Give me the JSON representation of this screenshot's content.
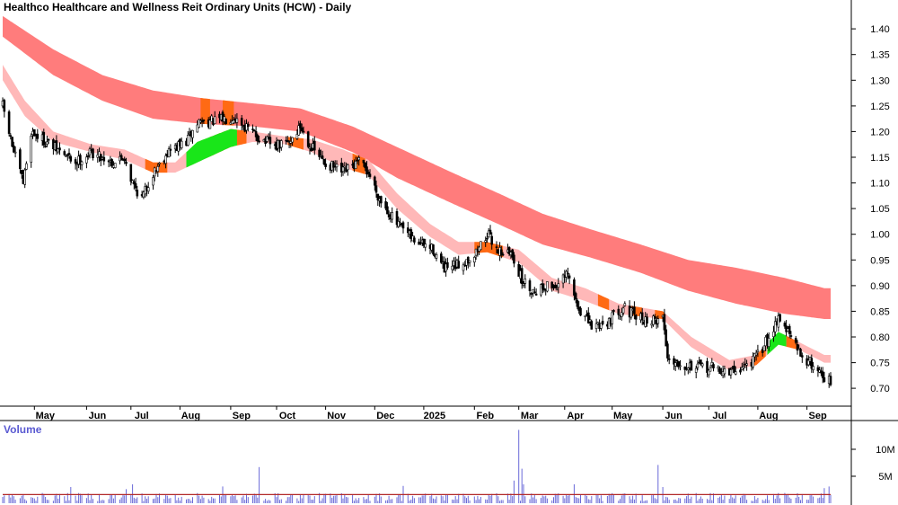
{
  "chart_data": {
    "type": "candlestick",
    "title": "Healthco Healthcare and Wellness Reit Ordinary Units (HCW) - Daily",
    "price_axis": {
      "ylim": [
        0.66,
        1.43
      ],
      "ticks": [
        "0.70",
        "0.75",
        "0.80",
        "0.85",
        "0.90",
        "0.95",
        "1.00",
        "1.05",
        "1.10",
        "1.15",
        "1.20",
        "1.25",
        "1.30",
        "1.35",
        "1.40"
      ]
    },
    "x_axis": {
      "start": "2024-04-11",
      "end": "2025-09-16",
      "labels": [
        {
          "label": "May",
          "date": "2024-05-01"
        },
        {
          "label": "Jun",
          "date": "2024-06-03"
        },
        {
          "label": "Jul",
          "date": "2024-07-01"
        },
        {
          "label": "Aug",
          "date": "2024-08-01"
        },
        {
          "label": "Sep",
          "date": "2024-09-02"
        },
        {
          "label": "Oct",
          "date": "2024-10-01"
        },
        {
          "label": "Nov",
          "date": "2024-11-01"
        },
        {
          "label": "Dec",
          "date": "2024-12-02"
        },
        {
          "label": "2025",
          "date": "2025-01-02"
        },
        {
          "label": "Feb",
          "date": "2025-02-03"
        },
        {
          "label": "Mar",
          "date": "2025-03-03"
        },
        {
          "label": "Apr",
          "date": "2025-04-01"
        },
        {
          "label": "May",
          "date": "2025-05-01"
        },
        {
          "label": "Jun",
          "date": "2025-06-02"
        },
        {
          "label": "Jul",
          "date": "2025-07-01"
        },
        {
          "label": "Aug",
          "date": "2025-08-01"
        },
        {
          "label": "Sep",
          "date": "2025-09-01"
        }
      ]
    },
    "close_path": [
      [
        "2024-04-11",
        1.25
      ],
      [
        "2024-04-18",
        1.16
      ],
      [
        "2024-04-24",
        1.1
      ],
      [
        "2024-04-29",
        1.2
      ],
      [
        "2024-05-13",
        1.17
      ],
      [
        "2024-05-27",
        1.14
      ],
      [
        "2024-06-06",
        1.16
      ],
      [
        "2024-06-20",
        1.14
      ],
      [
        "2024-06-27",
        1.15
      ],
      [
        "2024-07-02",
        1.1
      ],
      [
        "2024-07-08",
        1.07
      ],
      [
        "2024-07-15",
        1.12
      ],
      [
        "2024-07-24",
        1.16
      ],
      [
        "2024-08-05",
        1.18
      ],
      [
        "2024-08-13",
        1.22
      ],
      [
        "2024-08-23",
        1.22
      ],
      [
        "2024-09-04",
        1.23
      ],
      [
        "2024-09-11",
        1.21
      ],
      [
        "2024-09-19",
        1.19
      ],
      [
        "2024-09-30",
        1.17
      ],
      [
        "2024-10-09",
        1.18
      ],
      [
        "2024-10-16",
        1.21
      ],
      [
        "2024-10-23",
        1.17
      ],
      [
        "2024-10-31",
        1.14
      ],
      [
        "2024-11-12",
        1.12
      ],
      [
        "2024-11-22",
        1.14
      ],
      [
        "2024-11-28",
        1.12
      ],
      [
        "2024-12-05",
        1.07
      ],
      [
        "2024-12-16",
        1.02
      ],
      [
        "2024-12-26",
        0.99
      ],
      [
        "2025-01-08",
        0.97
      ],
      [
        "2025-01-15",
        0.93
      ],
      [
        "2025-01-24",
        0.94
      ],
      [
        "2025-02-03",
        0.96
      ],
      [
        "2025-02-11",
        1.0
      ],
      [
        "2025-02-18",
        0.97
      ],
      [
        "2025-02-27",
        0.96
      ],
      [
        "2025-03-05",
        0.91
      ],
      [
        "2025-03-12",
        0.89
      ],
      [
        "2025-03-20",
        0.9
      ],
      [
        "2025-03-27",
        0.9
      ],
      [
        "2025-04-03",
        0.92
      ],
      [
        "2025-04-09",
        0.86
      ],
      [
        "2025-04-18",
        0.82
      ],
      [
        "2025-04-28",
        0.83
      ],
      [
        "2025-05-08",
        0.86
      ],
      [
        "2025-05-15",
        0.84
      ],
      [
        "2025-05-26",
        0.83
      ],
      [
        "2025-06-02",
        0.84
      ],
      [
        "2025-06-05",
        0.76
      ],
      [
        "2025-06-13",
        0.75
      ],
      [
        "2025-06-24",
        0.74
      ],
      [
        "2025-07-03",
        0.74
      ],
      [
        "2025-07-14",
        0.73
      ],
      [
        "2025-07-22",
        0.74
      ],
      [
        "2025-07-31",
        0.76
      ],
      [
        "2025-08-08",
        0.8
      ],
      [
        "2025-08-14",
        0.84
      ],
      [
        "2025-08-20",
        0.81
      ],
      [
        "2025-08-27",
        0.77
      ],
      [
        "2025-09-03",
        0.75
      ],
      [
        "2025-09-10",
        0.73
      ],
      [
        "2025-09-16",
        0.71
      ]
    ],
    "long_band": [
      [
        "2024-04-11",
        1.425,
        1.385
      ],
      [
        "2024-05-13",
        1.36,
        1.31
      ],
      [
        "2024-06-13",
        1.31,
        1.26
      ],
      [
        "2024-07-15",
        1.28,
        1.225
      ],
      [
        "2024-08-15",
        1.265,
        1.215
      ],
      [
        "2024-09-16",
        1.255,
        1.21
      ],
      [
        "2024-10-16",
        1.245,
        1.2
      ],
      [
        "2024-11-18",
        1.21,
        1.16
      ],
      [
        "2024-12-16",
        1.17,
        1.11
      ],
      [
        "2025-01-20",
        1.12,
        1.06
      ],
      [
        "2025-02-18",
        1.08,
        1.02
      ],
      [
        "2025-03-18",
        1.04,
        0.98
      ],
      [
        "2025-04-17",
        1.01,
        0.955
      ],
      [
        "2025-05-19",
        0.98,
        0.925
      ],
      [
        "2025-06-18",
        0.95,
        0.89
      ],
      [
        "2025-07-18",
        0.935,
        0.865
      ],
      [
        "2025-08-18",
        0.915,
        0.845
      ],
      [
        "2025-09-12",
        0.895,
        0.835
      ]
    ],
    "short_band": [
      [
        "2024-04-11",
        1.33,
        1.3
      ],
      [
        "2024-04-25",
        1.26,
        1.23
      ],
      [
        "2024-05-13",
        1.2,
        1.18
      ],
      [
        "2024-06-06",
        1.175,
        1.16
      ],
      [
        "2024-06-27",
        1.165,
        1.145
      ],
      [
        "2024-07-15",
        1.14,
        1.12
      ],
      [
        "2024-07-29",
        1.14,
        1.12
      ],
      [
        "2024-08-12",
        1.18,
        1.14
      ],
      [
        "2024-09-02",
        1.205,
        1.17
      ],
      [
        "2024-09-16",
        1.2,
        1.18
      ],
      [
        "2024-10-07",
        1.19,
        1.175
      ],
      [
        "2024-10-23",
        1.185,
        1.16
      ],
      [
        "2024-11-12",
        1.165,
        1.13
      ],
      [
        "2024-11-28",
        1.145,
        1.115
      ],
      [
        "2024-12-16",
        1.08,
        1.05
      ],
      [
        "2025-01-06",
        1.02,
        0.995
      ],
      [
        "2025-01-24",
        0.985,
        0.96
      ],
      [
        "2025-02-11",
        0.985,
        0.965
      ],
      [
        "2025-03-03",
        0.97,
        0.945
      ],
      [
        "2025-03-24",
        0.915,
        0.89
      ],
      [
        "2025-04-14",
        0.895,
        0.87
      ],
      [
        "2025-05-05",
        0.865,
        0.845
      ],
      [
        "2025-06-02",
        0.85,
        0.835
      ],
      [
        "2025-06-20",
        0.8,
        0.78
      ],
      [
        "2025-07-14",
        0.755,
        0.735
      ],
      [
        "2025-07-31",
        0.765,
        0.745
      ],
      [
        "2025-08-14",
        0.81,
        0.785
      ],
      [
        "2025-08-27",
        0.79,
        0.775
      ],
      [
        "2025-09-12",
        0.765,
        0.75
      ]
    ],
    "band_colors": {
      "long_band": "#ff7c7c",
      "short_band": "#ffb8b8",
      "short_band_bullish": "#19e619",
      "band_crossover": "#ff6a14",
      "candle": "#000000",
      "volume_bar": "#6a6ad8",
      "volume_average": "#b32b2b"
    },
    "short_band_bullish_segments": [
      [
        "2024-08-05",
        "2024-09-06"
      ],
      [
        "2025-08-07",
        "2025-08-19"
      ]
    ],
    "band_crossover_segments": [
      [
        "2024-07-10",
        "2024-07-24"
      ],
      [
        "2024-08-20",
        "2024-09-12"
      ],
      [
        "2024-10-08",
        "2024-10-18"
      ],
      [
        "2024-11-18",
        "2024-11-26"
      ],
      [
        "2025-02-03",
        "2025-02-21"
      ],
      [
        "2025-04-22",
        "2025-04-29"
      ],
      [
        "2025-05-13",
        "2025-05-20"
      ],
      [
        "2025-05-28",
        "2025-06-03"
      ],
      [
        "2025-07-29",
        "2025-08-06"
      ],
      [
        "2025-08-19",
        "2025-08-26"
      ]
    ],
    "long_band_crossover_segments": [
      [
        "2024-08-14",
        "2024-08-20"
      ],
      [
        "2024-08-28",
        "2024-09-04"
      ]
    ],
    "volume": {
      "title": "Volume",
      "ticks": [
        "5M",
        "10M"
      ],
      "ylim": [
        0,
        14
      ],
      "average_level": 1.6,
      "spikes": [
        [
          "2024-05-24",
          3.0
        ],
        [
          "2024-06-28",
          2.6
        ],
        [
          "2024-07-02",
          3.5
        ],
        [
          "2024-08-28",
          3.1
        ],
        [
          "2024-09-20",
          6.7
        ],
        [
          "2024-12-20",
          3.2
        ],
        [
          "2025-02-28",
          4.2
        ],
        [
          "2025-03-03",
          13.6
        ],
        [
          "2025-03-05",
          6.4
        ],
        [
          "2025-03-06",
          3.5
        ],
        [
          "2025-04-07",
          3.5
        ],
        [
          "2025-05-30",
          7.1
        ],
        [
          "2025-06-02",
          3.0
        ],
        [
          "2025-09-12",
          2.8
        ],
        [
          "2025-09-15",
          3.1
        ]
      ]
    }
  }
}
